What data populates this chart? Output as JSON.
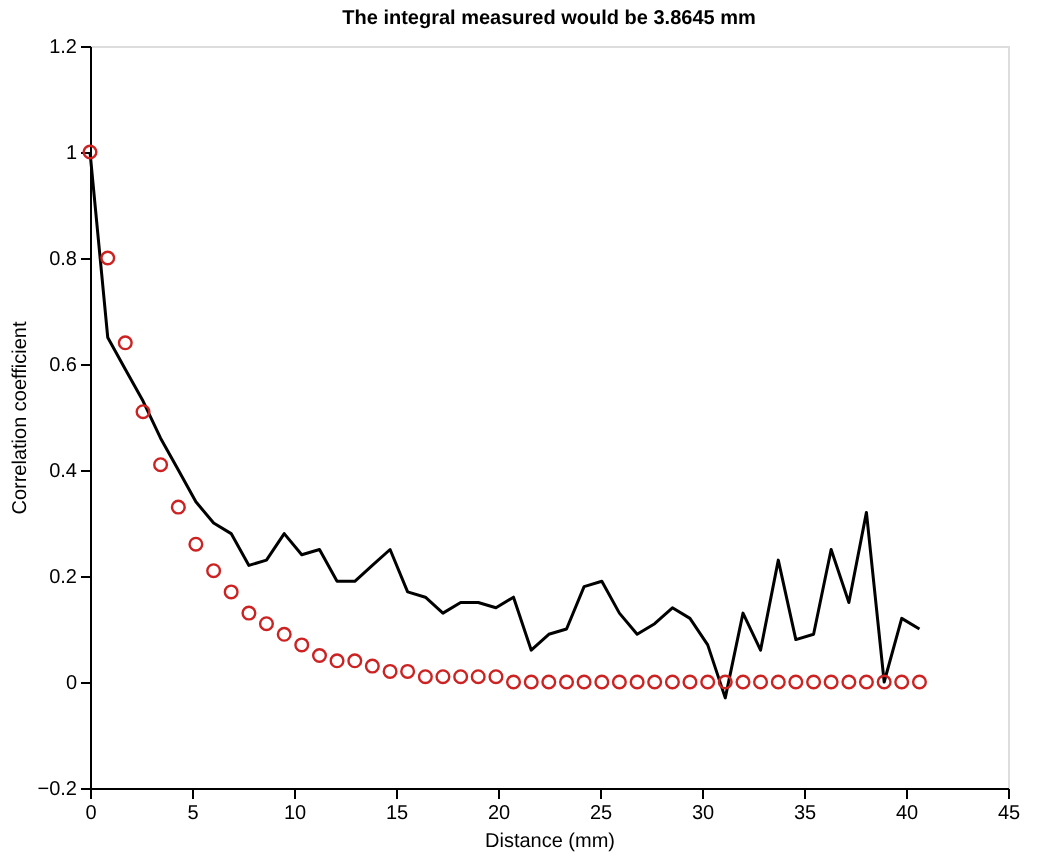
{
  "chart_data": {
    "type": "line",
    "title": "The integral measured would be 3.8645 mm",
    "xlabel": "Distance (mm)",
    "ylabel": "Correlation coefficient",
    "x": [
      0,
      0.87,
      1.73,
      2.6,
      3.46,
      4.33,
      5.19,
      6.06,
      6.92,
      7.79,
      8.65,
      9.52,
      10.38,
      11.25,
      12.11,
      12.98,
      13.84,
      14.71,
      15.57,
      16.44,
      17.3,
      18.17,
      19.03,
      19.9,
      20.76,
      21.63,
      22.49,
      23.36,
      24.22,
      25.09,
      25.95,
      26.82,
      27.68,
      28.55,
      29.41,
      30.28,
      31.14,
      32.01,
      32.87,
      33.74,
      34.6,
      35.47,
      36.33,
      37.2,
      38.06,
      38.93,
      39.79,
      40.66
    ],
    "series": [
      {
        "type": "line",
        "color": "#000000",
        "marker": "none",
        "line_style": "solid",
        "values": [
          1.0,
          0.65,
          0.59,
          0.53,
          0.46,
          0.4,
          0.34,
          0.3,
          0.28,
          0.22,
          0.23,
          0.28,
          0.24,
          0.25,
          0.19,
          0.19,
          0.22,
          0.25,
          0.17,
          0.16,
          0.13,
          0.15,
          0.15,
          0.14,
          0.16,
          0.06,
          0.09,
          0.1,
          0.18,
          0.19,
          0.13,
          0.09,
          0.11,
          0.14,
          0.12,
          0.07,
          -0.03,
          0.13,
          0.06,
          0.23,
          0.08,
          0.09,
          0.25,
          0.15,
          0.32,
          0.0,
          0.12,
          0.1
        ]
      },
      {
        "type": "scatter",
        "color": "#cc2222",
        "marker": "circle",
        "values": [
          1.0,
          0.8,
          0.64,
          0.51,
          0.41,
          0.33,
          0.26,
          0.21,
          0.17,
          0.13,
          0.11,
          0.09,
          0.07,
          0.05,
          0.04,
          0.04,
          0.03,
          0.02,
          0.02,
          0.01,
          0.01,
          0.01,
          0.01,
          0.01,
          0.0,
          0.0,
          0.0,
          0.0,
          0.0,
          0.0,
          0.0,
          0.0,
          0.0,
          0.0,
          0.0,
          0.0,
          0.0,
          0.0,
          0.0,
          0.0,
          0.0,
          0.0,
          0.0,
          0.0,
          0.0,
          0.0,
          0.0,
          0.0
        ]
      }
    ],
    "xlim": [
      0,
      45
    ],
    "xticks": [
      0,
      5,
      10,
      15,
      20,
      25,
      30,
      35,
      40,
      45
    ],
    "ylim": [
      -0.2,
      1.2
    ],
    "yticks": [
      -0.2,
      0,
      0.2,
      0.4,
      0.6,
      0.8,
      1,
      1.2
    ],
    "grid": false
  }
}
